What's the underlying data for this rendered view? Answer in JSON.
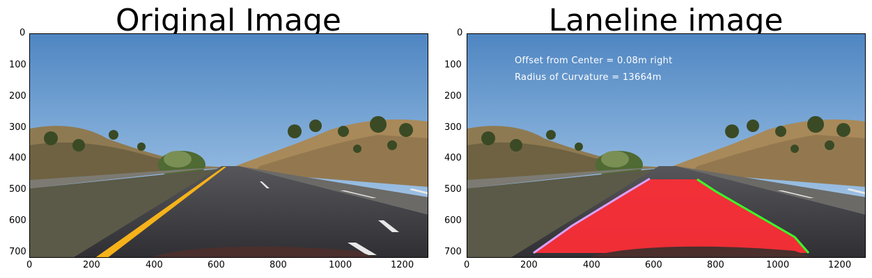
{
  "panels": [
    {
      "title": "Original Image",
      "x_ticks": [
        "0",
        "200",
        "400",
        "600",
        "800",
        "1000",
        "1200"
      ],
      "y_ticks": [
        "0",
        "100",
        "200",
        "300",
        "400",
        "500",
        "600",
        "700"
      ]
    },
    {
      "title": "Laneline image",
      "x_ticks": [
        "0",
        "200",
        "400",
        "600",
        "800",
        "1000",
        "1200"
      ],
      "y_ticks": [
        "0",
        "100",
        "200",
        "300",
        "400",
        "500",
        "600",
        "700"
      ],
      "overlay": {
        "offset_text": "Offset from Center = 0.08m right",
        "radius_text": "Radius of Curvature = 13664m"
      }
    }
  ],
  "colors": {
    "lane_fill": "#ff2e36",
    "left_line": "#d6a2ff",
    "right_line": "#3cff2a",
    "yellow_line": "#f5b21a"
  }
}
